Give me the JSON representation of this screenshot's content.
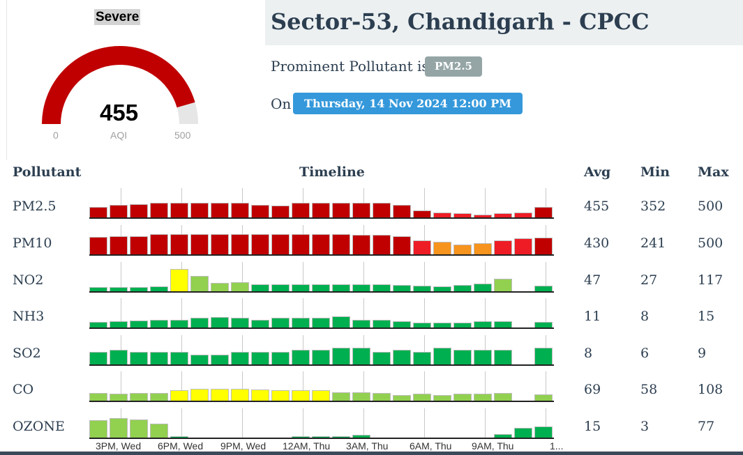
{
  "gauge": {
    "severity": "Severe",
    "aqi": "455",
    "caption": "AQI",
    "min_label": "0",
    "max_label": "500",
    "fraction": 0.91,
    "fill_color": "#c00000",
    "track_color": "#e6e6e6"
  },
  "station": {
    "title": "Sector-53, Chandigarh - CPCC",
    "prominent_prefix": "Prominent Pollutant is",
    "prominent_pollutant": "PM2.5",
    "on_prefix": "On",
    "datetime": "Thursday, 14 Nov 2024 12:00 PM"
  },
  "table": {
    "headers": {
      "pollutant": "Pollutant",
      "timeline": "Timeline",
      "avg": "Avg",
      "min": "Min",
      "max": "Max"
    },
    "time_labels": [
      "3PM, Wed",
      "6PM, Wed",
      "9PM, Wed",
      "12AM, Thu",
      "3AM, Thu",
      "6AM, Thu",
      "9AM, Thu",
      "1..."
    ],
    "colors": {
      "severe": "#c00000",
      "very_poor": "#ee1c25",
      "poor": "#f7941d",
      "moderate": "#ffff00",
      "satisfactory": "#92d050",
      "good": "#00b050"
    },
    "rows": [
      {
        "name": "PM2.5",
        "avg": "455",
        "min": "352",
        "max": "500",
        "levels": [
          0.38,
          0.46,
          0.48,
          0.52,
          0.52,
          0.52,
          0.52,
          0.52,
          0.46,
          0.42,
          0.52,
          0.52,
          0.52,
          0.52,
          0.52,
          0.46,
          0.25,
          0.18,
          0.14,
          0.1,
          0.14,
          0.18,
          0.38
        ],
        "cats": [
          "severe",
          "severe",
          "severe",
          "severe",
          "severe",
          "severe",
          "severe",
          "severe",
          "severe",
          "severe",
          "severe",
          "severe",
          "severe",
          "severe",
          "severe",
          "severe",
          "severe",
          "very_poor",
          "very_poor",
          "very_poor",
          "very_poor",
          "very_poor",
          "severe"
        ]
      },
      {
        "name": "PM10",
        "avg": "430",
        "min": "241",
        "max": "500",
        "levels": [
          0.62,
          0.65,
          0.65,
          0.72,
          0.72,
          0.72,
          0.72,
          0.72,
          0.72,
          0.72,
          0.72,
          0.72,
          0.72,
          0.7,
          0.7,
          0.65,
          0.5,
          0.45,
          0.35,
          0.4,
          0.5,
          0.58,
          0.6
        ],
        "cats": [
          "severe",
          "severe",
          "severe",
          "severe",
          "severe",
          "severe",
          "severe",
          "severe",
          "severe",
          "severe",
          "severe",
          "severe",
          "severe",
          "severe",
          "severe",
          "severe",
          "very_poor",
          "poor",
          "poor",
          "poor",
          "very_poor",
          "very_poor",
          "severe"
        ]
      },
      {
        "name": "NO2",
        "avg": "47",
        "min": "27",
        "max": "117",
        "levels": [
          0.14,
          0.14,
          0.14,
          0.18,
          0.8,
          0.55,
          0.3,
          0.32,
          0.26,
          0.26,
          0.24,
          0.26,
          0.24,
          0.26,
          0.24,
          0.22,
          0.2,
          0.18,
          0.22,
          0.28,
          0.45,
          0,
          0.2
        ],
        "cats": [
          "good",
          "good",
          "good",
          "good",
          "moderate",
          "satisfactory",
          "satisfactory",
          "satisfactory",
          "good",
          "good",
          "good",
          "good",
          "good",
          "good",
          "good",
          "good",
          "good",
          "good",
          "good",
          "good",
          "satisfactory",
          "good",
          "good"
        ]
      },
      {
        "name": "NH3",
        "avg": "11",
        "min": "8",
        "max": "15",
        "levels": [
          0.2,
          0.22,
          0.26,
          0.28,
          0.28,
          0.34,
          0.38,
          0.34,
          0.28,
          0.36,
          0.36,
          0.36,
          0.4,
          0.28,
          0.28,
          0.22,
          0.18,
          0.18,
          0.18,
          0.22,
          0.22,
          0,
          0.2
        ],
        "cats": [
          "good",
          "good",
          "good",
          "good",
          "good",
          "good",
          "good",
          "good",
          "good",
          "good",
          "good",
          "good",
          "good",
          "good",
          "good",
          "good",
          "good",
          "good",
          "good",
          "good",
          "good",
          "good",
          "good"
        ]
      },
      {
        "name": "SO2",
        "avg": "8",
        "min": "6",
        "max": "9",
        "levels": [
          0.44,
          0.52,
          0.44,
          0.44,
          0.44,
          0.36,
          0.36,
          0.44,
          0.44,
          0.44,
          0.52,
          0.52,
          0.6,
          0.6,
          0.44,
          0.52,
          0.44,
          0.6,
          0.52,
          0.52,
          0.52,
          0,
          0.6
        ],
        "cats": [
          "good",
          "good",
          "good",
          "good",
          "good",
          "good",
          "good",
          "good",
          "good",
          "good",
          "good",
          "good",
          "good",
          "good",
          "good",
          "good",
          "good",
          "good",
          "good",
          "good",
          "good",
          "good",
          "good"
        ]
      },
      {
        "name": "CO",
        "avg": "69",
        "min": "58",
        "max": "108",
        "levels": [
          0.28,
          0.24,
          0.28,
          0.28,
          0.38,
          0.42,
          0.42,
          0.42,
          0.4,
          0.38,
          0.38,
          0.38,
          0.3,
          0.3,
          0.28,
          0.2,
          0.24,
          0.2,
          0.24,
          0.26,
          0.28,
          0,
          0.22
        ],
        "cats": [
          "satisfactory",
          "satisfactory",
          "satisfactory",
          "satisfactory",
          "moderate",
          "moderate",
          "moderate",
          "moderate",
          "moderate",
          "moderate",
          "moderate",
          "moderate",
          "satisfactory",
          "satisfactory",
          "satisfactory",
          "satisfactory",
          "satisfactory",
          "satisfactory",
          "satisfactory",
          "satisfactory",
          "satisfactory",
          "good",
          "satisfactory"
        ]
      },
      {
        "name": "OZONE",
        "avg": "15",
        "min": "3",
        "max": "77",
        "levels": [
          0.62,
          0.7,
          0.66,
          0.5,
          0.06,
          0,
          0,
          0,
          0,
          0,
          0.06,
          0.06,
          0.06,
          0.1,
          0,
          0,
          0,
          0,
          0,
          0,
          0.12,
          0.34,
          0.4
        ],
        "cats": [
          "satisfactory",
          "satisfactory",
          "satisfactory",
          "satisfactory",
          "good",
          "good",
          "good",
          "good",
          "good",
          "good",
          "good",
          "good",
          "good",
          "good",
          "good",
          "good",
          "good",
          "good",
          "good",
          "good",
          "good",
          "good",
          "good"
        ]
      }
    ]
  }
}
